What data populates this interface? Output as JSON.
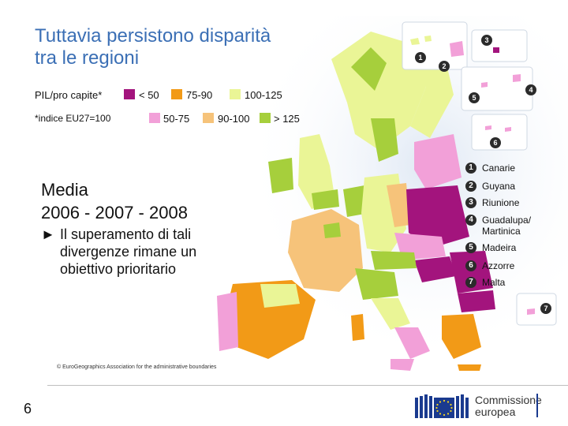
{
  "slide": {
    "title_line1": "Tuttavia persistono disparità",
    "title_line2": "tra le regioni",
    "page_number": "6"
  },
  "legend": {
    "pil_label": "PIL/pro capite*",
    "index_note": "*indice EU27=100",
    "classes": [
      {
        "label": "< 50",
        "color": "#a3147d"
      },
      {
        "label": "50-75",
        "color": "#f2a0d8"
      },
      {
        "label": "75-90",
        "color": "#f29a17"
      },
      {
        "label": "90-100",
        "color": "#f6c37a"
      },
      {
        "label": "100-125",
        "color": "#eaf596"
      },
      {
        "label": "> 125",
        "color": "#a6cf3c"
      }
    ]
  },
  "media": {
    "line1": "Media",
    "line2": "2006 - 2007 - 2008"
  },
  "note": {
    "arrow": "►",
    "text": "Il superamento di tali divergenze rimane un obiettivo prioritario"
  },
  "copyright": "© EuroGeographics Association for the administrative boundaries",
  "outermost_regions": [
    {
      "num": "1",
      "label": "Canarie"
    },
    {
      "num": "2",
      "label": "Guyana"
    },
    {
      "num": "3",
      "label": "Riunione"
    },
    {
      "num": "4",
      "label": "Guadalupa/\nMartinica"
    },
    {
      "num": "5",
      "label": "Madeira"
    },
    {
      "num": "6",
      "label": "Azzorre"
    },
    {
      "num": "7",
      "label": "Malta"
    }
  ],
  "map": {
    "inset_numbers": [
      "1",
      "2",
      "3",
      "4",
      "5",
      "6",
      "7"
    ]
  },
  "logo": {
    "line1": "Commissione",
    "line2": "europea"
  }
}
